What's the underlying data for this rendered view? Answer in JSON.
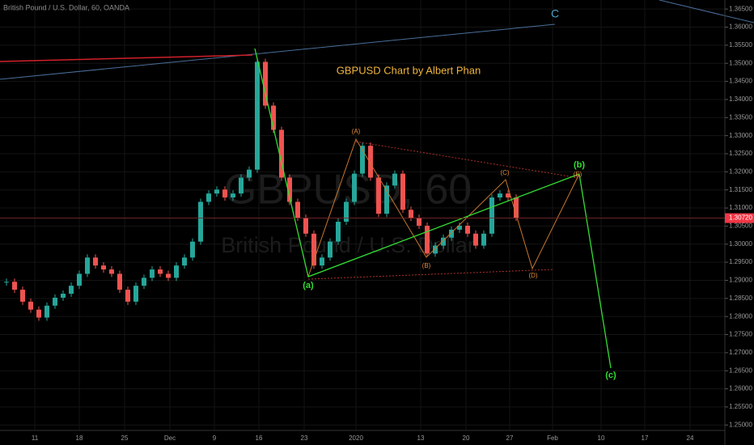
{
  "chart_data": {
    "type": "candlestick",
    "header": "British Pound / U.S. Dollar, 60, OANDA",
    "title": "GBPUSD Chart by Albert Phan",
    "watermark": "GBPUSD, 60",
    "watermark_subtitle": "British Pound / U.S. Dollar",
    "wave_labels": [
      "C",
      "(A)",
      "(B)",
      "(C)",
      "(D)",
      "(E)",
      "(a)",
      "(b)",
      "(c)"
    ],
    "x_tick_labels": [
      "11",
      "18",
      "25",
      "Dec",
      "9",
      "16",
      "23",
      "2020",
      "13",
      "20",
      "27",
      "Feb",
      "10",
      "17",
      "24"
    ],
    "up_color": "#26a69a",
    "down_color": "#ef5350",
    "values": [
      1.2896,
      1.2874,
      1.2841,
      1.2819,
      1.2797,
      1.283,
      1.2852,
      1.2863,
      1.2885,
      1.2918,
      1.2963,
      1.2941,
      1.293,
      1.2918,
      1.2874,
      1.2841,
      1.2885,
      1.2907,
      1.293,
      1.2918,
      1.2907,
      1.2941,
      1.2963,
      1.3007,
      1.3117,
      1.314,
      1.3151,
      1.3129,
      1.314,
      1.3184,
      1.3206,
      1.3504,
      1.3383,
      1.3316,
      1.3184,
      1.3117,
      1.3073,
      1.3029,
      1.2941,
      1.2963,
      1.3007,
      1.3062,
      1.3117,
      1.3195,
      1.3272,
      1.3184,
      1.3084,
      1.3162,
      1.3195,
      1.3095,
      1.3073,
      1.3051,
      1.2974,
      1.2996,
      1.3018,
      1.304,
      1.3051,
      1.3029,
      1.2996,
      1.3029,
      1.3129,
      1.314,
      1.3129,
      1.3073
    ],
    "last_price": {
      "value": 1.3072,
      "label": "1.30720"
    },
    "ylim": [
      1.2485,
      1.3675
    ],
    "yticks": [
      {
        "value": 1.25,
        "label": "1.25000"
      },
      {
        "value": 1.255,
        "label": "1.25500"
      },
      {
        "value": 1.26,
        "label": "1.26000"
      },
      {
        "value": 1.265,
        "label": "1.26500"
      },
      {
        "value": 1.27,
        "label": "1.27000"
      },
      {
        "value": 1.275,
        "label": "1.27500"
      },
      {
        "value": 1.28,
        "label": "1.28000"
      },
      {
        "value": 1.285,
        "label": "1.28500"
      },
      {
        "value": 1.29,
        "label": "1.29000"
      },
      {
        "value": 1.295,
        "label": "1.29500"
      },
      {
        "value": 1.3,
        "label": "1.30000"
      },
      {
        "value": 1.305,
        "label": "1.30500"
      },
      {
        "value": 1.31,
        "label": "1.31000"
      },
      {
        "value": 1.315,
        "label": "1.31500"
      },
      {
        "value": 1.32,
        "label": "1.32000"
      },
      {
        "value": 1.325,
        "label": "1.32500"
      },
      {
        "value": 1.33,
        "label": "1.33000"
      },
      {
        "value": 1.335,
        "label": "1.33500"
      },
      {
        "value": 1.34,
        "label": "1.34000"
      },
      {
        "value": 1.345,
        "label": "1.34500"
      },
      {
        "value": 1.35,
        "label": "1.35000"
      },
      {
        "value": 1.355,
        "label": "1.35500"
      },
      {
        "value": 1.36,
        "label": "1.36000"
      },
      {
        "value": 1.365,
        "label": "1.36500"
      }
    ],
    "grid": true
  }
}
